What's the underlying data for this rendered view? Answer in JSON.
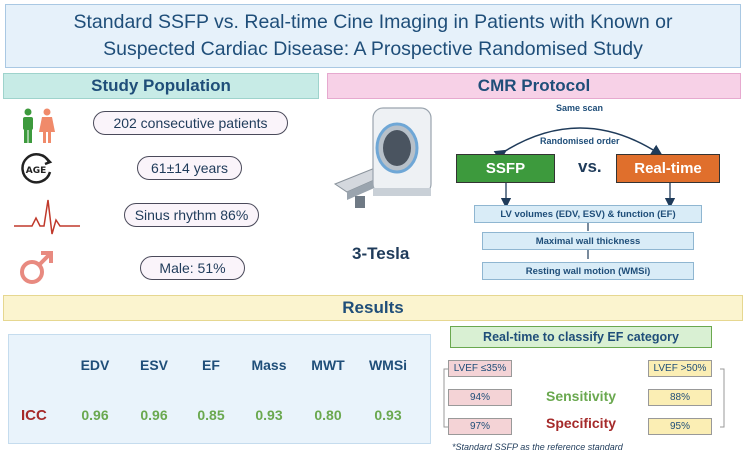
{
  "title": {
    "line1": "Standard SSFP vs. Real-time Cine Imaging in Patients with Known or",
    "line2": "Suspected Cardiac Disease: A Prospective Randomised Study"
  },
  "study_population": {
    "heading": "Study Population",
    "items": [
      {
        "icon": "people-icon",
        "text": "202 consecutive patients"
      },
      {
        "icon": "age-icon",
        "text": "61±14 years"
      },
      {
        "icon": "ecg-icon",
        "text": "Sinus rhythm 86%"
      },
      {
        "icon": "male-symbol-icon",
        "text": "Male: 51%"
      }
    ]
  },
  "cmr_protocol": {
    "heading": "CMR Protocol",
    "same_scan": "Same scan",
    "randomised_order": "Randomised order",
    "scanner_label": "3-Tesla",
    "ssfp": "SSFP",
    "vs": "vs.",
    "realtime": "Real-time",
    "steps": [
      "LV volumes (EDV, ESV) & function (EF)",
      "Maximal wall thickness",
      "Resting wall motion (WMSi)"
    ],
    "colors": {
      "ssfp": "#3d9a3d",
      "realtime": "#e06f2c"
    }
  },
  "results": {
    "heading": "Results",
    "icc": {
      "row_label": "ICC",
      "columns": [
        "EDV",
        "ESV",
        "EF",
        "Mass",
        "MWT",
        "WMSi"
      ],
      "values": [
        "0.96",
        "0.96",
        "0.85",
        "0.93",
        "0.80",
        "0.93"
      ]
    },
    "ef_classification": {
      "heading": "Real-time to classify EF category",
      "low_label": "LVEF ≤35%",
      "high_label": "LVEF >50%",
      "sensitivity_label": "Sensitivity",
      "specificity_label": "Specificity",
      "low_sensitivity": "94%",
      "low_specificity": "97%",
      "high_sensitivity": "88%",
      "high_specificity": "95%"
    },
    "footnote": "*Standard SSFP as the reference standard"
  }
}
